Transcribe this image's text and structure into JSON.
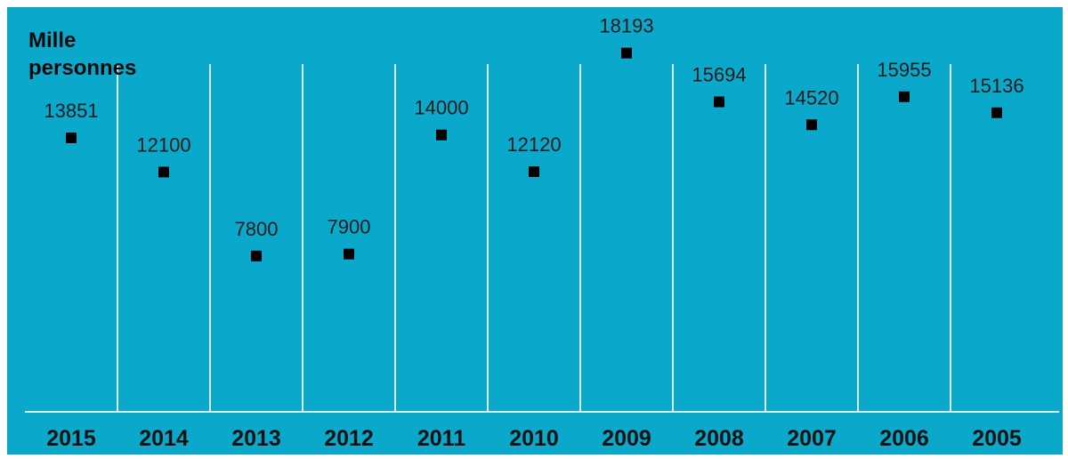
{
  "chart_data": {
    "type": "scatter",
    "ylabel_lines": [
      "Mille",
      "personnes"
    ],
    "categories": [
      "2015",
      "2014",
      "2013",
      "2012",
      "2011",
      "2010",
      "2009",
      "2008",
      "2007",
      "2006",
      "2005"
    ],
    "values": [
      13851,
      12100,
      7800,
      7900,
      14000,
      12120,
      18193,
      15694,
      14520,
      15955,
      15136
    ],
    "value_labels": [
      "13851",
      "12100",
      "7800",
      "7900",
      "14000",
      "12120",
      "18193",
      "15694",
      "14520",
      "15955",
      "15136"
    ],
    "ylim": [
      0,
      20000
    ],
    "grid": "vertical",
    "colors": {
      "background": "#0aa9cc",
      "marker": "#000000",
      "label": "#1b1b1b",
      "grid": "#d8eef4",
      "tick_label": "#111111"
    }
  }
}
